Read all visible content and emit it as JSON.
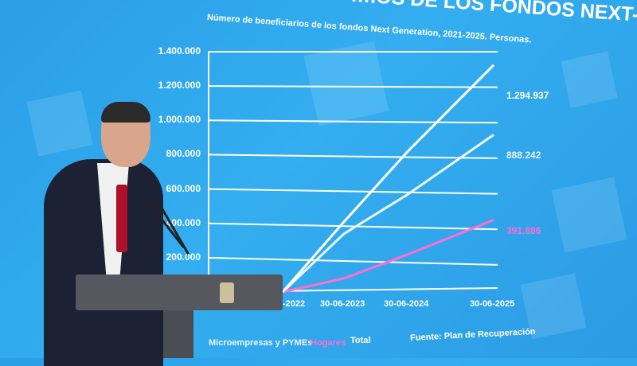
{
  "screen": {
    "title": "…IOS DE LOS FONDOS NEXT-GEN",
    "subtitle": "Número de beneficiarios de los fondos Next Generation, 2021-2025. Personas.",
    "source": "Fuente: Plan de Recuperación"
  },
  "chart_data": {
    "type": "line",
    "title": "…IOS DE LOS FONDOS NEXT-GEN",
    "subtitle": "Número de beneficiarios de los fondos Next Generation, 2021-2025. Personas.",
    "x": [
      "30-06-2022",
      "30-06-2023",
      "30-06-2024",
      "30-06-2025"
    ],
    "x_tick_labels": [
      "-2022",
      "30-06-2023",
      "30-06-2024",
      "30-06-2025"
    ],
    "y_tick_labels": [
      "1.400.000",
      "1.200.000",
      "1.000.000",
      "800.000",
      "600.000",
      "400.000",
      "200.000"
    ],
    "ylim": [
      0,
      1400000
    ],
    "grid": true,
    "legend": "bottom",
    "series": [
      {
        "name": "Microempresas y PYMEs",
        "color": "#eaf6fd",
        "values": [
          0,
          330000,
          550000,
          888242
        ],
        "end_label": "888.242"
      },
      {
        "name": "Hogares",
        "color": "#ff6ed0",
        "values": [
          0,
          70000,
          200000,
          391886
        ],
        "end_label": "391.886"
      },
      {
        "name": "Total",
        "color": "#ffffff",
        "values": [
          0,
          400000,
          800000,
          1294937
        ],
        "end_label": "1.294.937"
      }
    ]
  }
}
